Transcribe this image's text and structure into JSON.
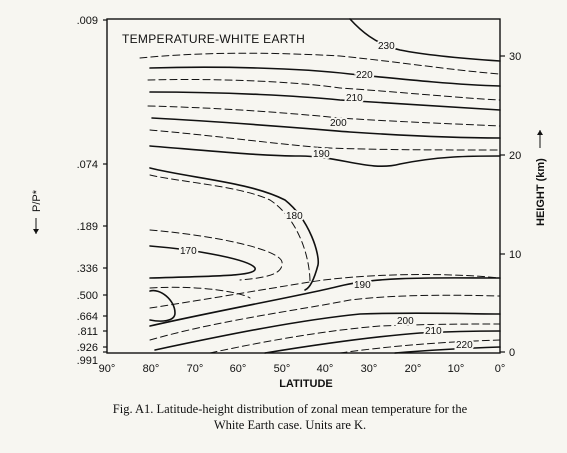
{
  "chart_data": {
    "type": "contour",
    "title": "TEMPERATURE-WHITE EARTH",
    "xlabel": "LATITUDE",
    "ylabel_left": "P/P*",
    "ylabel_right": "HEIGHT (km)",
    "x_ticks": [
      "90°",
      "80°",
      "70°",
      "60°",
      "50°",
      "40°",
      "30°",
      "20°",
      "10°",
      "0°"
    ],
    "x_range": [
      90,
      0
    ],
    "left_ticks": [
      ".009",
      ".074",
      ".189",
      ".336",
      ".500",
      ".664",
      ".811",
      ".926",
      ".991"
    ],
    "right_ticks": [
      "0",
      "10",
      "20",
      "30"
    ],
    "right_range_km": [
      0,
      30
    ],
    "contour_labels": [
      {
        "value": "230",
        "lat": 35,
        "height_km": 28.7
      },
      {
        "value": "220",
        "lat": 32,
        "height_km": 25.4
      },
      {
        "value": "210",
        "lat": 34,
        "height_km": 22.6
      },
      {
        "value": "200",
        "lat": 42,
        "height_km": 20.2
      },
      {
        "value": "190",
        "lat": 49,
        "height_km": 18.0
      },
      {
        "value": "180",
        "lat": 57,
        "height_km": 12.3
      },
      {
        "value": "170",
        "lat": 75,
        "height_km": 9.7
      },
      {
        "value": "190",
        "lat": 36,
        "height_km": 6.0
      },
      {
        "value": "200",
        "lat": 22,
        "height_km": 2.9
      },
      {
        "value": "210",
        "lat": 16,
        "height_km": 2.1
      },
      {
        "value": "220",
        "lat": 8,
        "height_km": 0.8
      }
    ],
    "contour_interval_K": 5,
    "units": "K"
  },
  "caption": {
    "line1": "Fig. A1. Latitude-height distribution of zonal mean temperature for the",
    "line2": "White Earth case. Units are K."
  }
}
